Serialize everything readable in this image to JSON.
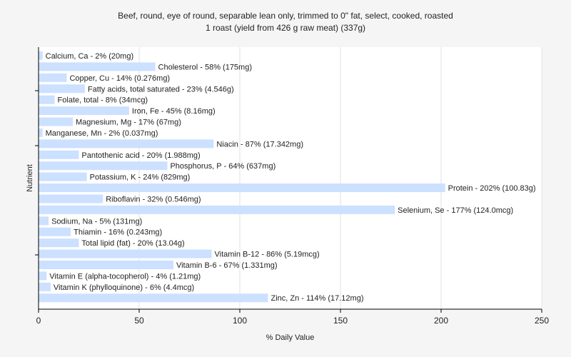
{
  "chart_data": {
    "type": "bar",
    "orientation": "horizontal",
    "title": "Beef, round, eye of round, separable lean only, trimmed to 0\" fat, select, cooked, roasted",
    "subtitle": "1 roast (yield from 426 g raw meat) (337g)",
    "xlabel": "% Daily Value",
    "ylabel": "Nutrient",
    "xlim": [
      0,
      250
    ],
    "xticks": [
      0,
      50,
      100,
      150,
      200,
      250
    ],
    "grid": true,
    "bar_color": "#cce0ff",
    "categories": [
      "Calcium, Ca",
      "Cholesterol",
      "Copper, Cu",
      "Fatty acids, total saturated",
      "Folate, total",
      "Iron, Fe",
      "Magnesium, Mg",
      "Manganese, Mn",
      "Niacin",
      "Pantothenic acid",
      "Phosphorus, P",
      "Potassium, K",
      "Protein",
      "Riboflavin",
      "Selenium, Se",
      "Sodium, Na",
      "Thiamin",
      "Total lipid (fat)",
      "Vitamin B-12",
      "Vitamin B-6",
      "Vitamin E (alpha-tocopherol)",
      "Vitamin K (phylloquinone)",
      "Zinc, Zn"
    ],
    "values": [
      2,
      58,
      14,
      23,
      8,
      45,
      17,
      2,
      87,
      20,
      64,
      24,
      202,
      32,
      177,
      5,
      16,
      20,
      86,
      67,
      4,
      6,
      114
    ],
    "labels": [
      "Calcium, Ca - 2% (20mg)",
      "Cholesterol - 58% (175mg)",
      "Copper, Cu - 14% (0.276mg)",
      "Fatty acids, total saturated - 23% (4.546g)",
      "Folate, total - 8% (34mcg)",
      "Iron, Fe - 45% (8.16mg)",
      "Magnesium, Mg - 17% (67mg)",
      "Manganese, Mn - 2% (0.037mg)",
      "Niacin - 87% (17.342mg)",
      "Pantothenic acid - 20% (1.988mg)",
      "Phosphorus, P - 64% (637mg)",
      "Potassium, K - 24% (829mg)",
      "Protein - 202% (100.83g)",
      "Riboflavin - 32% (0.546mg)",
      "Selenium, Se - 177% (124.0mcg)",
      "Sodium, Na - 5% (131mg)",
      "Thiamin - 16% (0.243mg)",
      "Total lipid (fat) - 20% (13.04g)",
      "Vitamin B-12 - 86% (5.19mcg)",
      "Vitamin B-6 - 67% (1.331mg)",
      "Vitamin E (alpha-tocopherol) - 4% (1.21mg)",
      "Vitamin K (phylloquinone) - 6% (4.4mcg)",
      "Zinc, Zn - 114% (17.12mg)"
    ]
  }
}
